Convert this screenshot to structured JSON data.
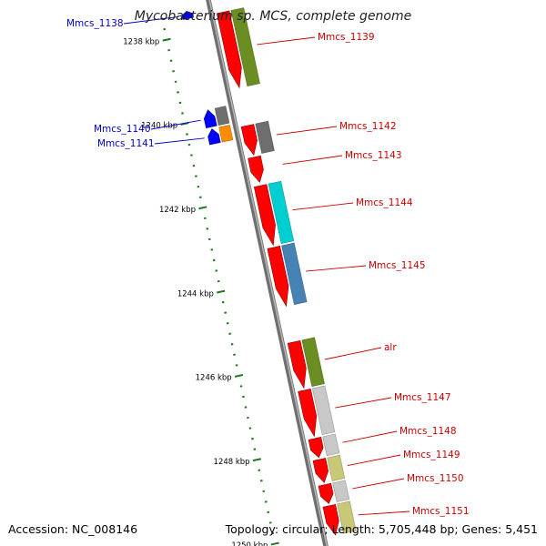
{
  "title": "Mycobacterium sp. MCS, complete genome",
  "footer": {
    "accession": "Accession: NC_008146",
    "summary": "Topology: circular; Length: 5,705,448 bp; Genes: 5,451"
  },
  "colors": {
    "backbone": "#8c8c8c",
    "tick": "#1c7a1c",
    "forward_label": "#0000cc",
    "reverse_label": "#cc0000",
    "cds_reverse": "#ff0000",
    "cds_forward": "#0000ff"
  },
  "scale": {
    "unit": "kbp",
    "ticks": [
      {
        "pos_kbp": 1238,
        "label": "1238 kbp"
      },
      {
        "pos_kbp": 1240,
        "label": "1240 kbp"
      },
      {
        "pos_kbp": 1242,
        "label": "1242 kbp"
      },
      {
        "pos_kbp": 1244,
        "label": "1244 kbp"
      },
      {
        "pos_kbp": 1246,
        "label": "1246 kbp"
      },
      {
        "pos_kbp": 1248,
        "label": "1248 kbp"
      },
      {
        "pos_kbp": 1250,
        "label": "1250 kbp"
      }
    ]
  },
  "genes": [
    {
      "name": "Mmcs_1138",
      "strand": "forward",
      "start_kbp": 1237.45,
      "end_kbp": 1237.62,
      "cog_color": null
    },
    {
      "name": "Mmcs_1139",
      "strand": "reverse",
      "start_kbp": 1237.65,
      "end_kbp": 1239.45,
      "cog_color": "#6b8e23"
    },
    {
      "name": "Mmcs_1140",
      "strand": "forward",
      "start_kbp": 1239.8,
      "end_kbp": 1240.2,
      "cog_color": "#6e6e6e"
    },
    {
      "name": "Mmcs_1141",
      "strand": "forward",
      "start_kbp": 1240.25,
      "end_kbp": 1240.6,
      "cog_color": "#ff8c00"
    },
    {
      "name": "Mmcs_1142",
      "strand": "reverse",
      "start_kbp": 1240.35,
      "end_kbp": 1241.05,
      "cog_color": "#6e6e6e"
    },
    {
      "name": "Mmcs_1143",
      "strand": "reverse",
      "start_kbp": 1241.1,
      "end_kbp": 1241.7,
      "cog_color": null
    },
    {
      "name": "Mmcs_1144",
      "strand": "reverse",
      "start_kbp": 1241.78,
      "end_kbp": 1243.2,
      "cog_color": "#00ced1"
    },
    {
      "name": "Mmcs_1145",
      "strand": "reverse",
      "start_kbp": 1243.25,
      "end_kbp": 1244.65,
      "cog_color": "#4682b4"
    },
    {
      "name": "alr",
      "strand": "reverse",
      "start_kbp": 1245.5,
      "end_kbp": 1246.6,
      "cog_color": "#6b8e23"
    },
    {
      "name": "Mmcs_1147",
      "strand": "reverse",
      "start_kbp": 1246.65,
      "end_kbp": 1247.75,
      "cog_color": "#c8c8c8"
    },
    {
      "name": "Mmcs_1148",
      "strand": "reverse",
      "start_kbp": 1247.8,
      "end_kbp": 1248.25,
      "cog_color": "#c8c8c8"
    },
    {
      "name": "Mmcs_1149",
      "strand": "reverse",
      "start_kbp": 1248.3,
      "end_kbp": 1248.85,
      "cog_color": "#c8c878"
    },
    {
      "name": "Mmcs_1150",
      "strand": "reverse",
      "start_kbp": 1248.9,
      "end_kbp": 1249.35,
      "cog_color": "#c8c8c8"
    },
    {
      "name": "Mmcs_1151",
      "strand": "reverse",
      "start_kbp": 1249.4,
      "end_kbp": 1250.1,
      "cog_color": "#c8c878"
    }
  ]
}
